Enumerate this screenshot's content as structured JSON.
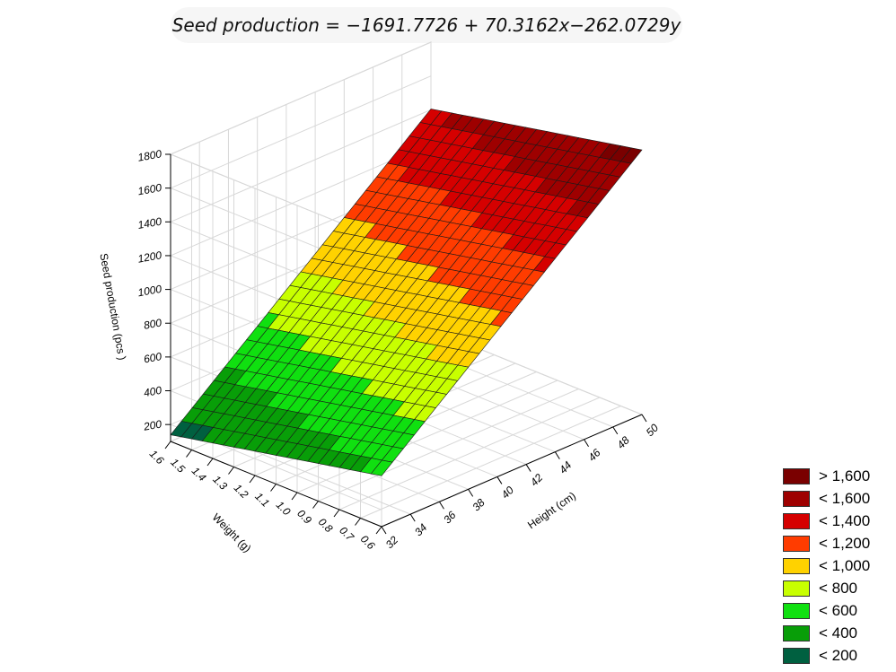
{
  "chart_data": {
    "type": "surface",
    "title": "Seed production = −1691.7726 + 70.3162x−262.0729y",
    "equation": {
      "intercept": -1691.7726,
      "x_coef": 70.3162,
      "y_coef": -262.0729
    },
    "x_axis": {
      "label": "Height (cm)",
      "range": [
        32,
        50
      ],
      "ticks": [
        "32",
        "34",
        "36",
        "38",
        "40",
        "42",
        "44",
        "46",
        "48",
        "50"
      ]
    },
    "y_axis": {
      "label": "Weight (g)",
      "range": [
        0.6,
        1.6
      ],
      "ticks": [
        "0.6",
        "0.7",
        "0.8",
        "0.9",
        "1.0",
        "1.1",
        "1.2",
        "1.3",
        "1.4",
        "1.5",
        "1.6"
      ]
    },
    "z_axis": {
      "label": "Seed production (pcs )",
      "range": [
        100,
        1800
      ],
      "ticks": [
        "200",
        "400",
        "600",
        "800",
        "1000",
        "1200",
        "1400",
        "1600",
        "1800"
      ]
    },
    "grid": true,
    "legend_position": "bottom-right",
    "legend": [
      {
        "label": "> 1,600",
        "color": "#7a0000"
      },
      {
        "label": "< 1,600",
        "color": "#9e0000"
      },
      {
        "label": "< 1,400",
        "color": "#d50000"
      },
      {
        "label": "< 1,200",
        "color": "#ff3c00"
      },
      {
        "label": "< 1,000",
        "color": "#ffd200"
      },
      {
        "label": "< 800",
        "color": "#c8ff00"
      },
      {
        "label": "< 600",
        "color": "#10e010"
      },
      {
        "label": "< 400",
        "color": "#089e08"
      },
      {
        "label": "< 200",
        "color": "#006040"
      }
    ]
  }
}
